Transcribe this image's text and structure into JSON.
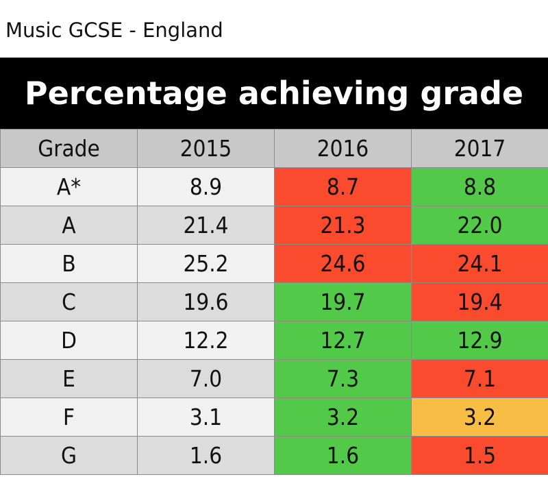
{
  "caption": "Music GCSE - England",
  "chart_data": {
    "type": "table",
    "title": "Percentage achieving grade",
    "columns": [
      "Grade",
      "2015",
      "2016",
      "2017"
    ],
    "rows": [
      [
        "A*",
        "8.9",
        "8.7",
        "8.8"
      ],
      [
        "A",
        "21.4",
        "21.3",
        "22.0"
      ],
      [
        "B",
        "25.2",
        "24.6",
        "24.1"
      ],
      [
        "C",
        "19.6",
        "19.7",
        "19.4"
      ],
      [
        "D",
        "12.2",
        "12.7",
        "12.9"
      ],
      [
        "E",
        "7.0",
        "7.3",
        "7.1"
      ],
      [
        "F",
        "3.1",
        "3.2",
        "3.2"
      ],
      [
        "G",
        "1.6",
        "1.6",
        "1.5"
      ]
    ],
    "cell_status": [
      [
        "base",
        "base",
        "red",
        "green"
      ],
      [
        "base",
        "base",
        "red",
        "green"
      ],
      [
        "base",
        "base",
        "red",
        "red"
      ],
      [
        "base",
        "base",
        "green",
        "red"
      ],
      [
        "base",
        "base",
        "green",
        "green"
      ],
      [
        "base",
        "base",
        "green",
        "red"
      ],
      [
        "base",
        "base",
        "green",
        "amber"
      ],
      [
        "base",
        "base",
        "green",
        "red"
      ]
    ],
    "status_colors": {
      "red": "#fa4b2e",
      "green": "#52c948",
      "amber": "#f8bd45"
    }
  }
}
